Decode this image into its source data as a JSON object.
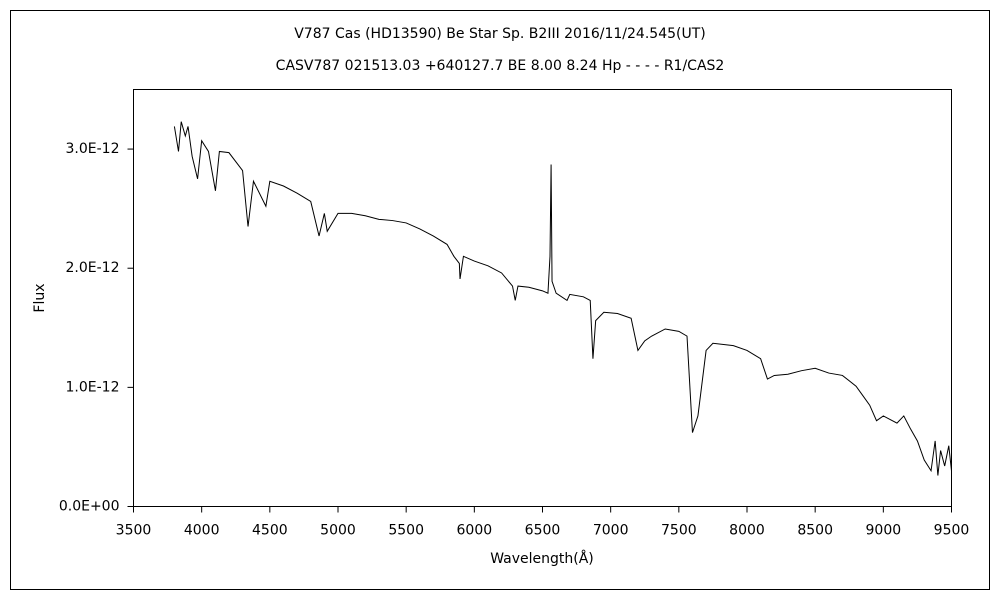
{
  "chart_data": {
    "type": "line",
    "title": "V787 Cas (HD13590)    Be Star    Sp. B2III    2016/11/24.545(UT)",
    "subtitle": "CASV787 021513.03 +640127.7 BE 8.00 8.24 Hp - - - - R1/CAS2",
    "xlabel": "Wavelength(Å)",
    "ylabel": "Flux",
    "xlim": [
      3500,
      9500
    ],
    "xticks": [
      3500,
      4000,
      4500,
      5000,
      5500,
      6000,
      6500,
      7000,
      7500,
      8000,
      8500,
      9000,
      9500
    ],
    "ylim": [
      0,
      3.5e-12
    ],
    "yticks": [
      {
        "value": 0,
        "label": "0.0E+00"
      },
      {
        "value": 1e-12,
        "label": "1.0E-12"
      },
      {
        "value": 2e-12,
        "label": "2.0E-12"
      },
      {
        "value": 3e-12,
        "label": "3.0E-12"
      }
    ],
    "color": "#000000",
    "x": [
      3800,
      3830,
      3850,
      3880,
      3900,
      3930,
      3970,
      4000,
      4050,
      4101,
      4130,
      4200,
      4300,
      4340,
      4380,
      4471,
      4500,
      4600,
      4700,
      4800,
      4861,
      4900,
      4921,
      5000,
      5100,
      5200,
      5300,
      5400,
      5500,
      5600,
      5700,
      5800,
      5850,
      5890,
      5895,
      5920,
      6000,
      6100,
      6200,
      6280,
      6300,
      6320,
      6400,
      6500,
      6540,
      6555,
      6563,
      6570,
      6600,
      6680,
      6700,
      6800,
      6850,
      6870,
      6890,
      6950,
      7050,
      7150,
      7200,
      7250,
      7300,
      7400,
      7500,
      7560,
      7600,
      7640,
      7700,
      7750,
      7900,
      8000,
      8100,
      8150,
      8200,
      8300,
      8400,
      8500,
      8600,
      8700,
      8800,
      8850,
      8900,
      8950,
      9000,
      9100,
      9150,
      9200,
      9250,
      9300,
      9350,
      9380,
      9400,
      9420,
      9450,
      9480,
      9500
    ],
    "values": [
      3.19e-12,
      2.98e-12,
      3.23e-12,
      3.11e-12,
      3.19e-12,
      2.94e-12,
      2.75e-12,
      3.07e-12,
      2.98e-12,
      2.65e-12,
      2.98e-12,
      2.97e-12,
      2.82e-12,
      2.35e-12,
      2.73e-12,
      2.52e-12,
      2.73e-12,
      2.69e-12,
      2.63e-12,
      2.56e-12,
      2.27e-12,
      2.46e-12,
      2.31e-12,
      2.46e-12,
      2.46e-12,
      2.44e-12,
      2.41e-12,
      2.4e-12,
      2.38e-12,
      2.33e-12,
      2.27e-12,
      2.2e-12,
      2.1e-12,
      2.04e-12,
      1.91e-12,
      2.1e-12,
      2.06e-12,
      2.02e-12,
      1.96e-12,
      1.85e-12,
      1.73e-12,
      1.85e-12,
      1.84e-12,
      1.81e-12,
      1.79e-12,
      2.1e-12,
      2.87e-12,
      1.89e-12,
      1.79e-12,
      1.73e-12,
      1.78e-12,
      1.76e-12,
      1.73e-12,
      1.24e-12,
      1.56e-12,
      1.63e-12,
      1.62e-12,
      1.58e-12,
      1.31e-12,
      1.39e-12,
      1.43e-12,
      1.49e-12,
      1.47e-12,
      1.43e-12,
      6.2e-13,
      7.6e-13,
      1.31e-12,
      1.37e-12,
      1.35e-12,
      1.31e-12,
      1.24e-12,
      1.07e-12,
      1.1e-12,
      1.11e-12,
      1.14e-12,
      1.16e-12,
      1.12e-12,
      1.1e-12,
      1.01e-12,
      9.3e-13,
      8.5e-13,
      7.2e-13,
      7.6e-13,
      7e-13,
      7.6e-13,
      6.5e-13,
      5.5e-13,
      3.9e-13,
      3e-13,
      5.5e-13,
      2.6e-13,
      4.7e-13,
      3.4e-13,
      5.1e-13,
      3e-13
    ]
  }
}
